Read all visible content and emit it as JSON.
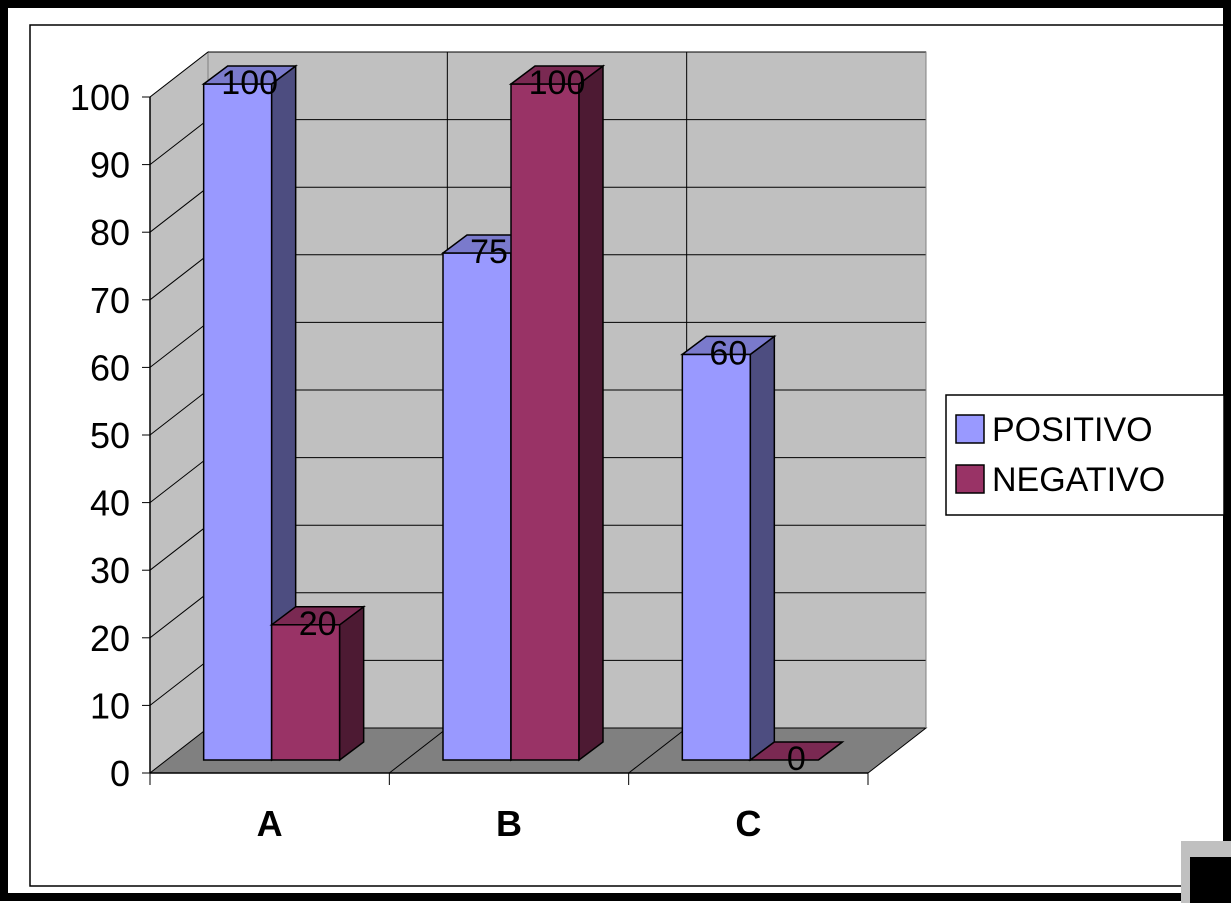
{
  "chart_data": {
    "type": "bar",
    "style": "3d-clustered-column",
    "title": "",
    "xlabel": "",
    "ylabel": "",
    "categories": [
      "A",
      "B",
      "C"
    ],
    "ylim": [
      0,
      100
    ],
    "yticks": [
      0,
      10,
      20,
      30,
      40,
      50,
      60,
      70,
      80,
      90,
      100
    ],
    "grid": true,
    "legend_position": "right",
    "data_labels": true,
    "series": [
      {
        "name": "POSITIVO",
        "values": [
          100,
          75,
          60
        ],
        "color": "#9999ff",
        "side_color": "#4d4d80",
        "top_color": "#7a7acc"
      },
      {
        "name": "NEGATIVO",
        "values": [
          20,
          100,
          0
        ],
        "color": "#993366",
        "side_color": "#4d1a33",
        "top_color": "#7a2952"
      }
    ],
    "colors": {
      "wall": "#c0c0c0",
      "floor": "#808080",
      "frame_border": "#000000"
    }
  }
}
